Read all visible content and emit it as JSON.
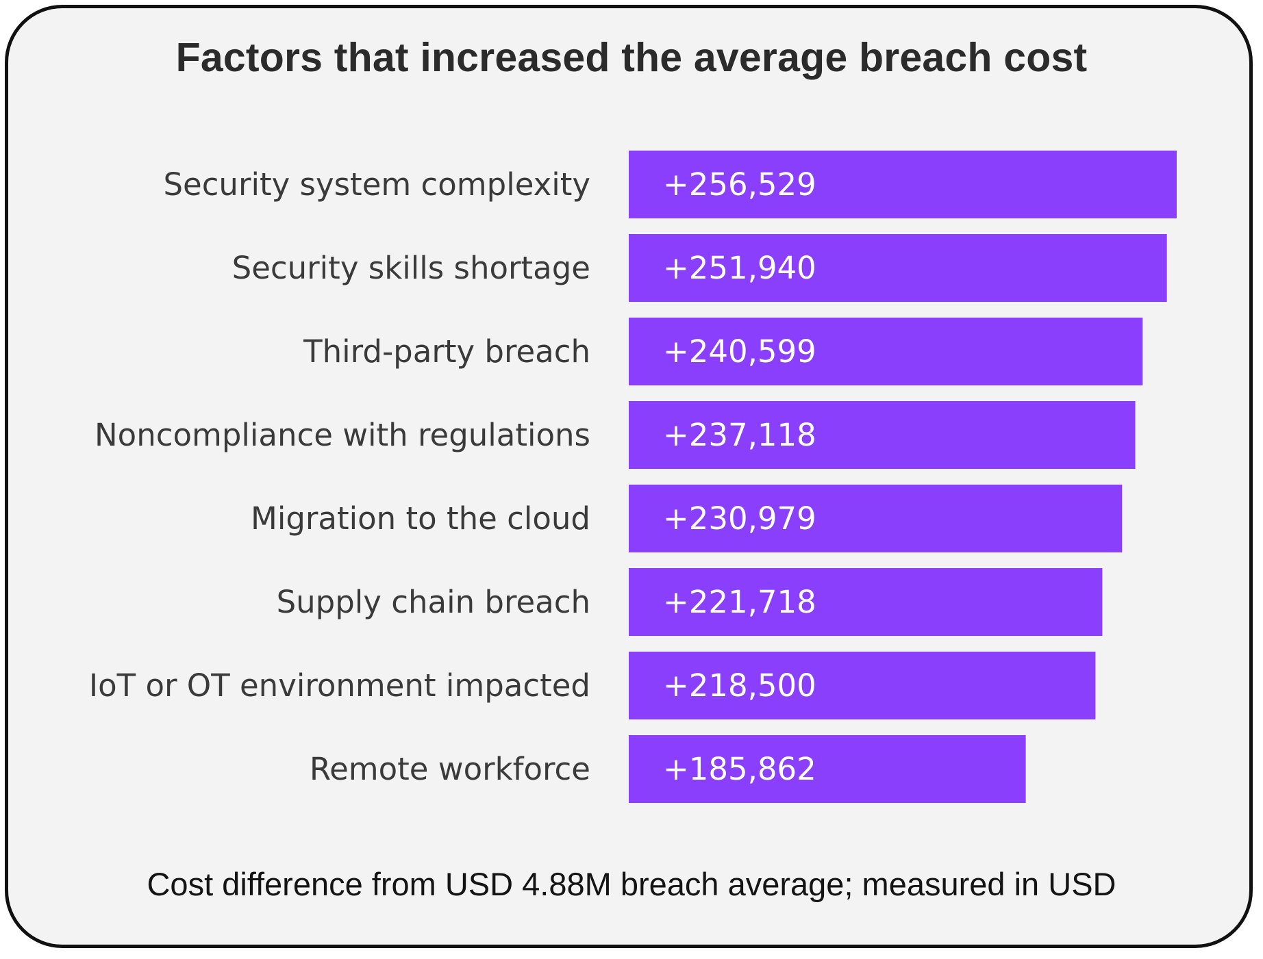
{
  "chart_data": {
    "type": "bar",
    "orientation": "horizontal",
    "title": "Factors that increased the average breach cost",
    "xlabel": "Cost difference from USD 4.88M breach average; measured in USD",
    "ylabel": "",
    "grid": false,
    "categories": [
      "Security system complexity",
      "Security skills shortage",
      "Third-party breach",
      "Noncompliance with regulations",
      "Migration to the cloud",
      "Supply chain breach",
      "IoT or OT environment impacted",
      "Remote workforce"
    ],
    "values": [
      256529,
      251940,
      240599,
      237118,
      230979,
      221718,
      218500,
      185862
    ],
    "value_labels": [
      "+256,529",
      "+251,940",
      "+240,599",
      "+237,118",
      "+230,979",
      "+221,718",
      "+218,500",
      "+185,862"
    ],
    "xlim": [
      0,
      256529
    ],
    "bar_color": "#8a3ffc"
  },
  "colors": {
    "background": "#f3f3f3",
    "border": "#111111",
    "bar": "#8a3ffc",
    "bar_text": "#ffffff",
    "label_text": "#3a3a3a"
  }
}
